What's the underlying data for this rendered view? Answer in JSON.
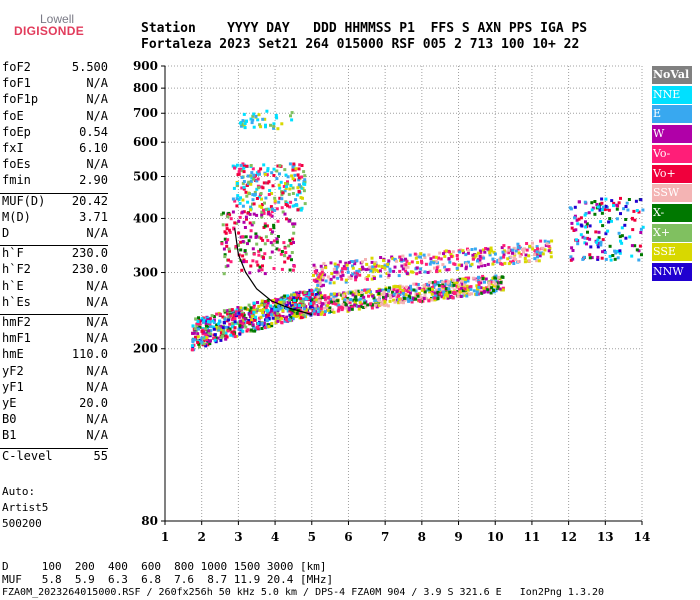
{
  "logo": {
    "line1": "Lowell",
    "line2": "DIGISONDE"
  },
  "header": {
    "line1": "Station    YYYY DAY   DDD HHMMSS P1  FFS S AXN PPS IGA PS",
    "line2": "Fortaleza 2023 Set21 264 015000 RSF 005 2 713 100 10+ 22"
  },
  "params": [
    {
      "group": 1,
      "name": "foF2",
      "value": "5.500"
    },
    {
      "group": 1,
      "name": "foF1",
      "value": "N/A"
    },
    {
      "group": 1,
      "name": "foF1p",
      "value": "N/A"
    },
    {
      "group": 1,
      "name": "foE",
      "value": "N/A"
    },
    {
      "group": 1,
      "name": "foEp",
      "value": "0.54"
    },
    {
      "group": 1,
      "name": "fxI",
      "value": "6.10"
    },
    {
      "group": 1,
      "name": "foEs",
      "value": "N/A"
    },
    {
      "group": 1,
      "name": "fmin",
      "value": "2.90"
    },
    {
      "group": 2,
      "name": "MUF(D)",
      "value": "20.42"
    },
    {
      "group": 2,
      "name": "M(D)",
      "value": "3.71"
    },
    {
      "group": 2,
      "name": "D",
      "value": "N/A"
    },
    {
      "group": 3,
      "name": "h`F",
      "value": "230.0"
    },
    {
      "group": 3,
      "name": "h`F2",
      "value": "230.0"
    },
    {
      "group": 3,
      "name": "h`E",
      "value": "N/A"
    },
    {
      "group": 3,
      "name": "h`Es",
      "value": "N/A"
    },
    {
      "group": 4,
      "name": "hmF2",
      "value": "N/A"
    },
    {
      "group": 4,
      "name": "hmF1",
      "value": "N/A"
    },
    {
      "group": 4,
      "name": "hmE",
      "value": "110.0"
    },
    {
      "group": 4,
      "name": "yF2",
      "value": "N/A"
    },
    {
      "group": 4,
      "name": "yF1",
      "value": "N/A"
    },
    {
      "group": 4,
      "name": "yE",
      "value": "20.0"
    },
    {
      "group": 4,
      "name": "B0",
      "value": "N/A"
    },
    {
      "group": 4,
      "name": "B1",
      "value": "N/A"
    },
    {
      "group": 5,
      "name": "C-level",
      "value": "55"
    }
  ],
  "auto": {
    "label": "Auto:",
    "system": "Artist5",
    "version": "500200"
  },
  "footer": {
    "line_d": "D     100  200  400  600  800 1000 1500 3000 [km]",
    "line_muf": "MUF   5.8  5.9  6.3  6.8  7.6  8.7 11.9 20.4 [MHz]",
    "line_file": "FZA0M_2023264015000.RSF / 260fx256h 50 kHz 5.0 km / DPS-4 FZA0M 904 / 3.9 S 321.6 E   Ion2Png 1.3.20"
  },
  "legend": [
    {
      "label": "NoVal",
      "color": "#808080"
    },
    {
      "label": "NNE",
      "color": "#00e0ff"
    },
    {
      "label": "E",
      "color": "#38a8f0"
    },
    {
      "label": "W",
      "color": "#b000a8"
    },
    {
      "label": "Vo-",
      "color": "#ff1e78"
    },
    {
      "label": "Vo+",
      "color": "#f0003c"
    },
    {
      "label": "SSW",
      "color": "#f4b4b4"
    },
    {
      "label": "X-",
      "color": "#007800"
    },
    {
      "label": "X+",
      "color": "#80c060"
    },
    {
      "label": "SSE",
      "color": "#d8d800"
    },
    {
      "label": "NNW",
      "color": "#2000d0"
    }
  ],
  "chart_data": {
    "type": "scatter",
    "xlim": [
      1,
      14
    ],
    "ylim": [
      80,
      900
    ],
    "y_scale": "log",
    "x_ticks": [
      1,
      2,
      3,
      4,
      5,
      6,
      7,
      8,
      9,
      10,
      11,
      12,
      13,
      14
    ],
    "y_ticks": [
      80,
      200,
      300,
      400,
      500,
      600,
      700,
      800,
      900
    ],
    "grid": true,
    "legend_position": "right",
    "clusters": [
      {
        "name": "F-trace main",
        "x": [
          1.7,
          5.2
        ],
        "y": [
          200,
          280
        ],
        "colors": [
          "#f0003c",
          "#ff1e78",
          "#b000a8",
          "#00e0ff",
          "#38a8f0",
          "#d8d800",
          "#007800",
          "#80c060",
          "#2000d0"
        ],
        "count": 700
      },
      {
        "name": "F-trace extension",
        "x": [
          5.0,
          10.2
        ],
        "y": [
          240,
          300
        ],
        "colors": [
          "#d8d800",
          "#ff1e78",
          "#b000a8",
          "#38a8f0",
          "#007800",
          "#f4b4b4"
        ],
        "count": 650
      },
      {
        "name": "F-trace upper layer",
        "x": [
          5.0,
          11.5
        ],
        "y": [
          280,
          360
        ],
        "colors": [
          "#f4b4b4",
          "#ff1e78",
          "#b000a8",
          "#38a8f0",
          "#d8d800"
        ],
        "count": 420
      },
      {
        "name": "spread echoes",
        "x": [
          2.5,
          4.5
        ],
        "y": [
          300,
          420
        ],
        "colors": [
          "#f0003c",
          "#ff1e78",
          "#007800",
          "#80c060",
          "#b000a8"
        ],
        "count": 180
      },
      {
        "name": "second hop",
        "x": [
          2.8,
          4.8
        ],
        "y": [
          420,
          540
        ],
        "colors": [
          "#38a8f0",
          "#00e0ff",
          "#d8d800",
          "#ff1e78",
          "#f0003c",
          "#80c060"
        ],
        "count": 220
      },
      {
        "name": "third hop",
        "x": [
          3.0,
          4.5
        ],
        "y": [
          650,
          720
        ],
        "colors": [
          "#38a8f0",
          "#00e0ff",
          "#d8d800",
          "#80c060"
        ],
        "count": 40
      },
      {
        "name": "high-frequency echoes",
        "x": [
          12.0,
          14.0
        ],
        "y": [
          320,
          450
        ],
        "colors": [
          "#2000d0",
          "#00e0ff",
          "#38a8f0",
          "#b000a8",
          "#f0003c",
          "#007800"
        ],
        "count": 160
      }
    ],
    "profile_curve": [
      [
        2.9,
        380
      ],
      [
        3.0,
        330
      ],
      [
        3.2,
        300
      ],
      [
        3.5,
        275
      ],
      [
        3.9,
        258
      ],
      [
        4.4,
        248
      ],
      [
        5.0,
        240
      ]
    ]
  }
}
